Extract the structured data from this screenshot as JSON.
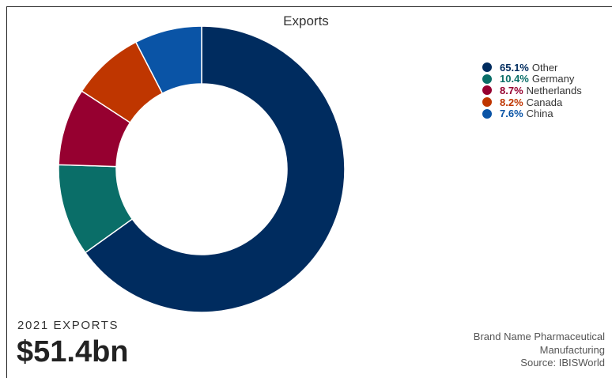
{
  "chart_data": {
    "type": "pie",
    "title": "Exports",
    "categories": [
      "Other",
      "Germany",
      "Netherlands",
      "Canada",
      "China"
    ],
    "values": [
      65.1,
      10.4,
      8.7,
      8.2,
      7.6
    ],
    "value_labels": [
      "65.1%",
      "10.4%",
      "8.7%",
      "8.2%",
      "7.6%"
    ],
    "colors": [
      "#002c5f",
      "#0a6e68",
      "#960030",
      "#bf3600",
      "#0a54a6"
    ],
    "legend_position": "top-right"
  },
  "kpi": {
    "label": "2021 EXPORTS",
    "value": "$51.4bn"
  },
  "source": {
    "line1": "Brand Name Pharmaceutical",
    "line2": "Manufacturing",
    "line3": "Source: IBISWorld"
  }
}
